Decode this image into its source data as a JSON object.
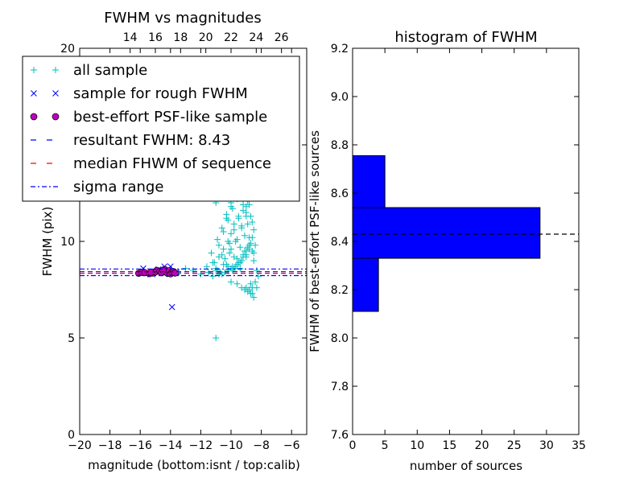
{
  "chart_data": [
    {
      "type": "scatter",
      "title": "FWHM vs magnitudes",
      "xlabel": "magnitude (bottom:isnt / top:calib)",
      "ylabel": "FWHM (pix)",
      "xlim": [
        -20,
        -5
      ],
      "ylim": [
        0,
        20
      ],
      "xticks": [
        "−20",
        "−18",
        "−16",
        "−14",
        "−12",
        "−10",
        "−8",
        "−6"
      ],
      "yticks": [
        "0",
        "5",
        "10",
        "",
        "20"
      ],
      "top_xlim": [
        10,
        28
      ],
      "top_xticks": [
        "14",
        "16",
        "18",
        "20",
        "22",
        "24",
        "26"
      ],
      "legend": {
        "position": "top-left",
        "entries": [
          {
            "label": "all sample",
            "marker": "+",
            "color": "#00bfbf"
          },
          {
            "label": "sample for rough FWHM",
            "marker": "x",
            "color": "#0000ff"
          },
          {
            "label": "best-effort PSF-like sample",
            "marker": "o",
            "color": "#bf00bf"
          },
          {
            "label": "resultant FWHM: 8.43",
            "marker": "dashed",
            "color": "#0000ff"
          },
          {
            "label": "median FHWM of sequence",
            "marker": "dashed",
            "color": "#ff0000"
          },
          {
            "label": "sigma range",
            "marker": "dashdot",
            "color": "#0000ff"
          }
        ]
      },
      "series": [
        {
          "name": "all sample",
          "color": "#00bfbf",
          "x": [
            -16.0,
            -15.5,
            -14.8,
            -14.2,
            -13.5,
            -13.0,
            -12.5,
            -12.0,
            -11.5,
            -11.0,
            -11.6,
            -11.2,
            -10.8,
            -10.5,
            -10.2,
            -10.0,
            -9.8,
            -9.5,
            -9.2,
            -9.0,
            -8.8,
            -8.6,
            -8.5,
            -8.3,
            -8.2,
            -11.0,
            -10.7,
            -10.4,
            -10.1,
            -9.9,
            -9.7,
            -9.4,
            -9.1,
            -8.9,
            -8.7,
            -8.4,
            -9.6,
            -9.3,
            -9.0,
            -8.8,
            -8.6,
            -10.3,
            -10.0,
            -9.7,
            -9.4,
            -9.1,
            -8.9,
            -8.7,
            -11.3,
            -10.9,
            -10.6,
            -10.3,
            -10.0,
            -9.8,
            -9.5,
            -9.2,
            -9.0,
            -8.8,
            -8.6,
            -8.4,
            -10.8,
            -10.5,
            -10.2,
            -9.9,
            -9.6,
            -9.3,
            -9.1,
            -8.9,
            -8.7,
            -8.5,
            -11.1,
            -10.6,
            -10.1,
            -9.8,
            -9.5,
            -9.2,
            -9.0,
            -8.8,
            -8.6,
            -10.4,
            -10.0,
            -9.6,
            -9.3,
            -9.0,
            -8.8,
            -10.2,
            -9.8,
            -9.4,
            -9.1,
            -8.9,
            -10.5,
            -10.1,
            -9.7,
            -9.3,
            -9.0,
            -8.8,
            -8.5,
            -9.8,
            -9.5,
            -9.2,
            -8.9,
            -10.9,
            -10.3,
            -9.6,
            -9.1,
            -8.7,
            -11.0,
            -9.9,
            -9.3,
            -9.0,
            -8.8,
            -8.6,
            -10.7,
            -10.2,
            -9.7,
            -9.4,
            -9.2,
            -9.0,
            -8.8,
            -10.8,
            -10.4,
            -10.0,
            -9.6,
            -9.3,
            -9.0,
            -11.2,
            -10.6,
            -9.9,
            -9.4,
            -10.0,
            -9.6,
            -9.3,
            -9.1,
            -8.9,
            -8.7,
            -9.0,
            -8.8,
            -8.6,
            -8.5,
            -8.7,
            -8.6,
            -8.4,
            -8.3,
            -11.0
          ],
          "y": [
            8.4,
            8.3,
            8.5,
            8.3,
            8.4,
            8.6,
            8.5,
            8.3,
            8.4,
            8.5,
            8.7,
            8.9,
            9.2,
            9.6,
            10.0,
            10.4,
            10.9,
            11.3,
            11.6,
            11.8,
            10.2,
            9.5,
            9.0,
            8.5,
            8.2,
            12.0,
            12.6,
            13.2,
            13.8,
            14.4,
            15.0,
            15.5,
            16.0,
            15.2,
            14.0,
            12.8,
            17.2,
            17.8,
            18.4,
            16.8,
            15.6,
            11.2,
            11.8,
            12.4,
            13.0,
            13.6,
            14.2,
            13.0,
            9.4,
            10.1,
            10.7,
            11.4,
            12.0,
            12.6,
            13.2,
            13.8,
            14.6,
            15.4,
            11.0,
            9.8,
            9.8,
            10.5,
            11.1,
            11.7,
            12.2,
            12.9,
            13.5,
            12.1,
            11.3,
            10.6,
            8.9,
            9.3,
            9.9,
            10.6,
            11.2,
            11.9,
            12.7,
            13.4,
            12.3,
            9.1,
            9.6,
            10.1,
            10.8,
            11.5,
            12.2,
            8.7,
            9.2,
            9.7,
            10.3,
            10.9,
            8.8,
            9.4,
            10.0,
            10.7,
            11.3,
            11.9,
            9.4,
            8.6,
            8.9,
            9.3,
            9.7,
            8.5,
            8.8,
            9.1,
            9.5,
            9.9,
            8.6,
            8.7,
            9.0,
            9.3,
            9.6,
            10.2,
            8.4,
            8.5,
            8.7,
            8.9,
            9.2,
            9.5,
            9.8,
            8.3,
            8.4,
            8.6,
            8.8,
            9.0,
            9.2,
            8.2,
            8.3,
            8.5,
            8.6,
            7.9,
            7.8,
            7.6,
            7.5,
            7.4,
            7.3,
            7.6,
            7.5,
            7.3,
            7.1,
            7.8,
            7.6,
            7.9,
            7.6,
            5.0
          ]
        },
        {
          "name": "sample for rough FWHM",
          "color": "#0000ff",
          "x": [
            -16.0,
            -15.8,
            -15.5,
            -15.2,
            -15.0,
            -14.8,
            -14.6,
            -14.4,
            -14.2,
            -14.0,
            -13.8,
            -13.6,
            -14.1,
            -13.9
          ],
          "y": [
            8.35,
            8.6,
            8.4,
            8.3,
            8.45,
            8.55,
            8.4,
            8.7,
            8.45,
            8.7,
            8.35,
            8.4,
            8.55,
            6.6
          ]
        },
        {
          "name": "best-effort PSF-like sample",
          "color": "#bf00bf",
          "x": [
            -16.1,
            -15.9,
            -15.7,
            -15.4,
            -15.2,
            -15.0,
            -14.9,
            -14.7,
            -14.6,
            -14.4,
            -14.3,
            -14.2,
            -14.1,
            -14.0,
            -13.9,
            -13.8,
            -13.7,
            -15.3,
            -14.5
          ],
          "y": [
            8.35,
            8.4,
            8.38,
            8.33,
            8.36,
            8.42,
            8.5,
            8.45,
            8.38,
            8.55,
            8.42,
            8.35,
            8.48,
            8.32,
            8.4,
            8.44,
            8.36,
            8.4,
            8.5
          ]
        }
      ],
      "lines": [
        {
          "name": "resultant FWHM: 8.43",
          "y": 8.43,
          "color": "#0000ff",
          "style": "dashed"
        },
        {
          "name": "median FHWM of sequence",
          "y": 8.35,
          "color": "#ff0000",
          "style": "dashed"
        },
        {
          "name": "sigma range",
          "y": 8.57,
          "color": "#0000ff",
          "style": "dashdot"
        },
        {
          "name": "sigma range",
          "y": 8.23,
          "color": "#0000ff",
          "style": "dashdot"
        }
      ]
    },
    {
      "type": "bar",
      "orientation": "horizontal",
      "title": "histogram of FWHM",
      "xlabel": "number of sources",
      "ylabel": "FWHM of best-effort PSF-like sources",
      "xlim": [
        0,
        35
      ],
      "ylim": [
        7.6,
        9.2
      ],
      "xticks": [
        "0",
        "5",
        "10",
        "15",
        "20",
        "25",
        "30",
        "35"
      ],
      "yticks": [
        "7.6",
        "7.8",
        "8.0",
        "8.2",
        "8.4",
        "8.6",
        "8.8",
        "9.0",
        "9.2"
      ],
      "color": "#0000ff",
      "bins": [
        {
          "low": 8.11,
          "high": 8.33,
          "count": 4
        },
        {
          "low": 8.33,
          "high": 8.54,
          "count": 29
        },
        {
          "low": 8.54,
          "high": 8.755,
          "count": 5
        }
      ],
      "reference_line": {
        "y": 8.43,
        "style": "dashed",
        "color": "#000000"
      }
    }
  ]
}
